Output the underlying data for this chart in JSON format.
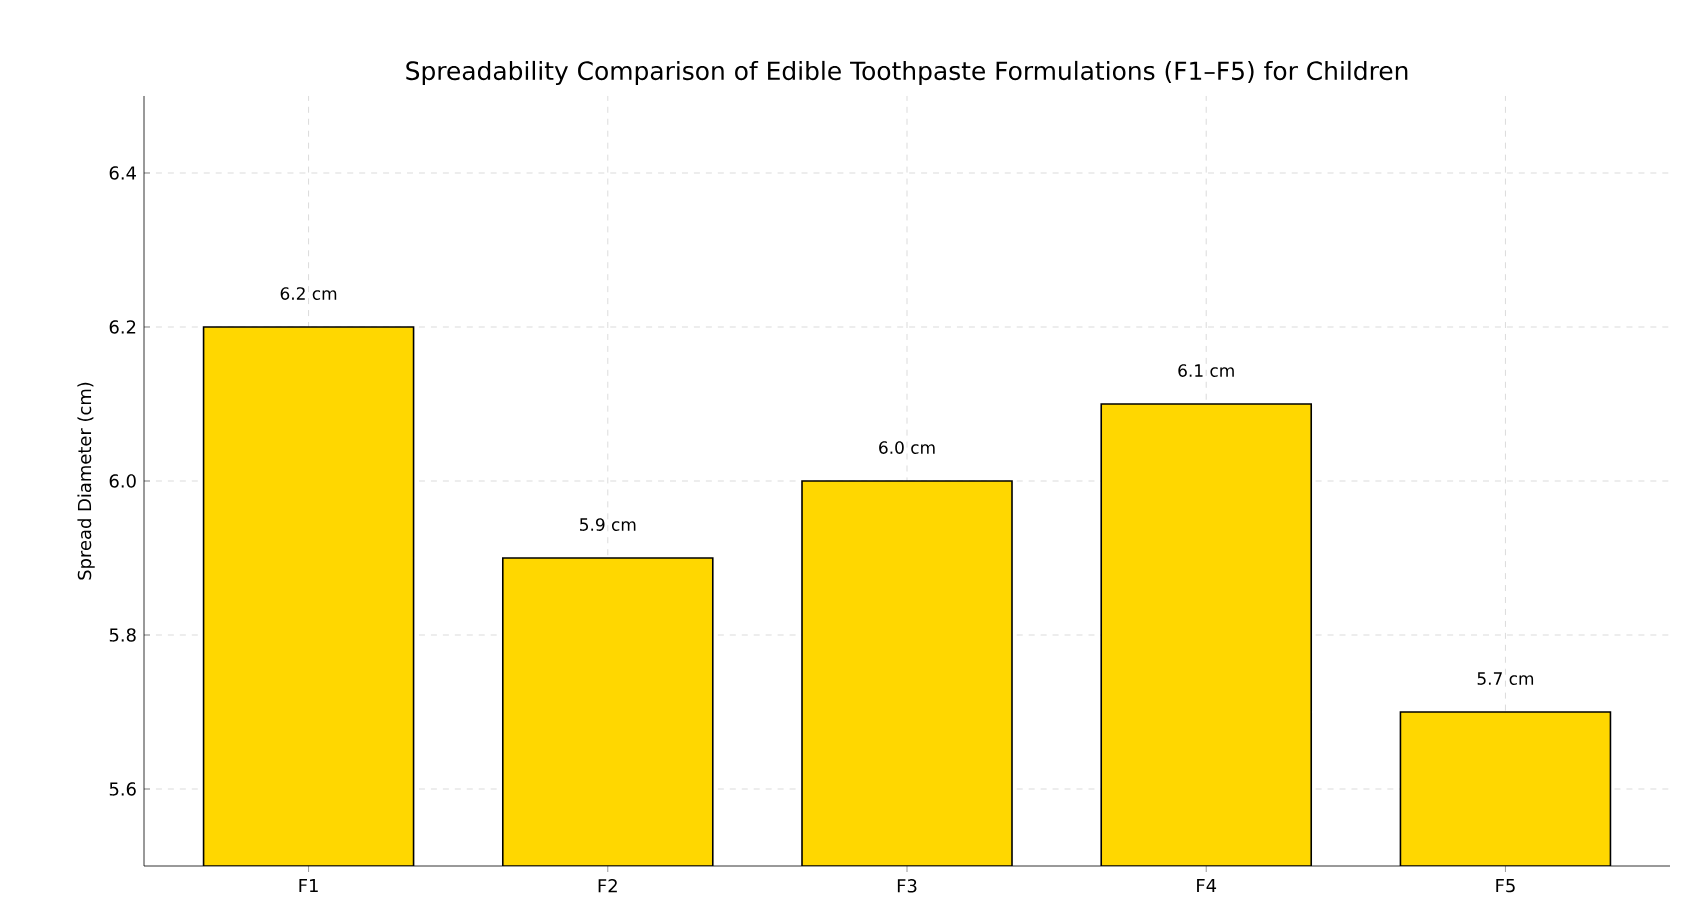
{
  "chart_data": {
    "type": "bar",
    "title": "Spreadability Comparison of Edible Toothpaste Formulations (F1–F5) for Children",
    "ylabel": "Spread Diameter (cm)",
    "categories": [
      "F1",
      "F2",
      "F3",
      "F4",
      "F5"
    ],
    "values": [
      6.2,
      5.9,
      6.0,
      6.1,
      5.7
    ],
    "value_labels": [
      "6.2 cm",
      "5.9 cm",
      "6.0 cm",
      "6.1 cm",
      "5.7 cm"
    ],
    "color": "#ffd700",
    "ylim": [
      5.5,
      6.5
    ],
    "yticks": [
      {
        "value": 5.6,
        "label": "5.6"
      },
      {
        "value": 5.8,
        "label": "5.8"
      },
      {
        "value": 6.0,
        "label": "6.0"
      },
      {
        "value": 6.2,
        "label": "6.2"
      },
      {
        "value": 6.4,
        "label": "6.4"
      }
    ],
    "grid": true
  }
}
